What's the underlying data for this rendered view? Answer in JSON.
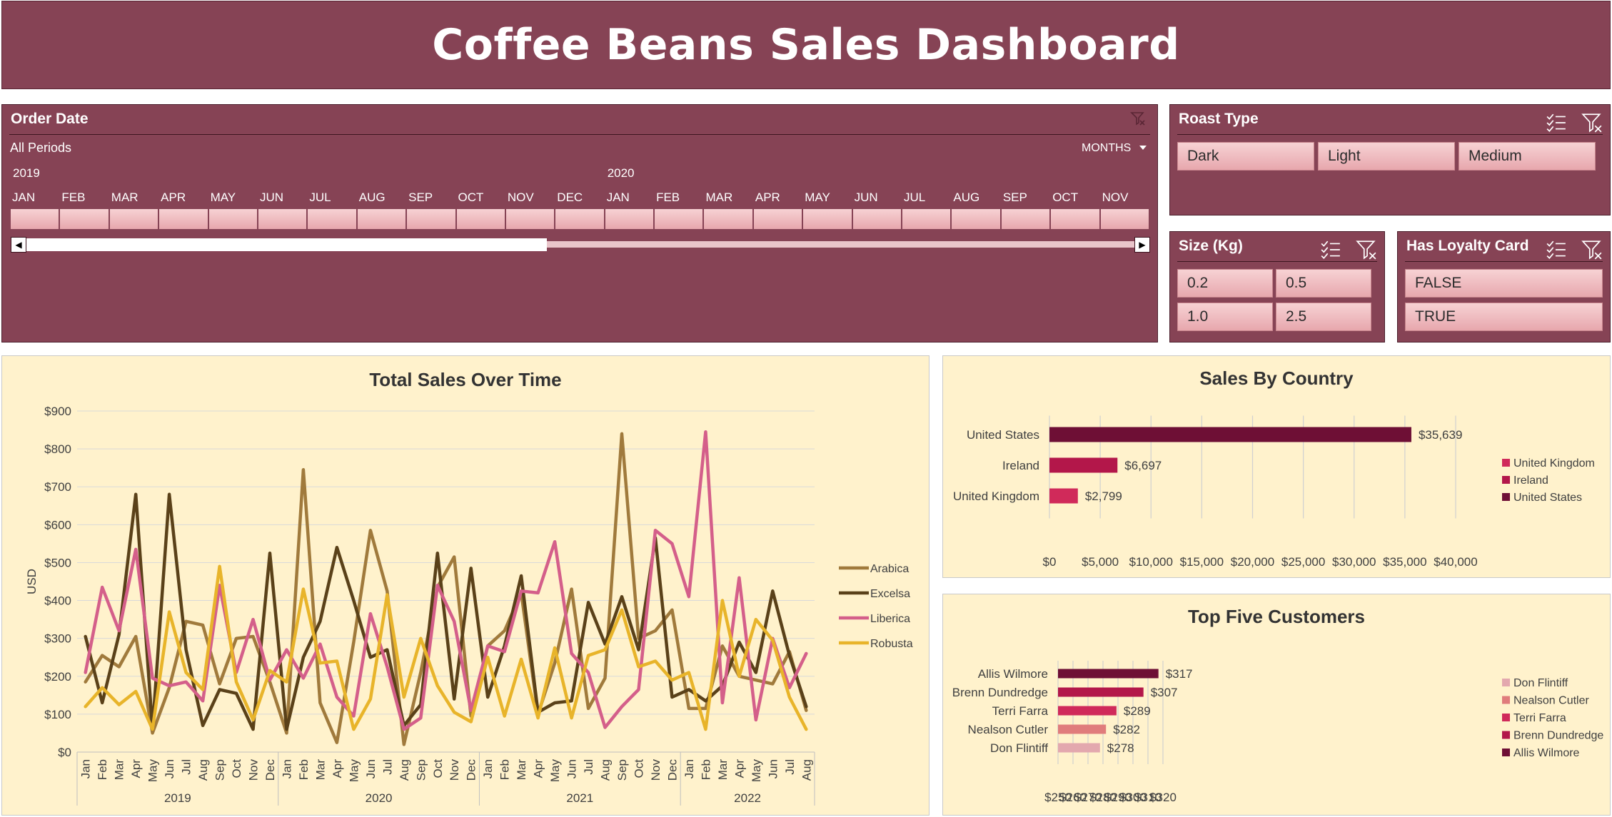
{
  "dashboard": {
    "title": "Coffee Beans Sales Dashboard"
  },
  "colors": {
    "banner": "#864355",
    "slicer_button": "#efbcc0",
    "chart_bg": "#fff2cc",
    "arabica": "#a07a3c",
    "excelsa": "#5a4119",
    "liberica": "#d45f8a",
    "robusta": "#e8b42a",
    "united_states": "#6e0f35",
    "ireland": "#b3174a",
    "united_kingdom": "#d02a5a",
    "allis_wilmore": "#6e0f35",
    "brenn_dundredge": "#b3174a",
    "terri_farra": "#d02a5a",
    "nealson_cutler": "#e07c7c",
    "don_flintiff": "#e3a8ae"
  },
  "timeline": {
    "title": "Order Date",
    "period_label": "All Periods",
    "unit_label": "MONTHS",
    "unit_icon": "dropdown-caret-icon",
    "clear_icon": "clear-filter-icon",
    "years": [
      "2019",
      "2020"
    ],
    "months": [
      "JAN",
      "FEB",
      "MAR",
      "APR",
      "MAY",
      "JUN",
      "JUL",
      "AUG",
      "SEP",
      "OCT",
      "NOV",
      "DEC",
      "JAN",
      "FEB",
      "MAR",
      "APR",
      "MAY",
      "JUN",
      "JUL",
      "AUG",
      "SEP",
      "OCT",
      "NOV"
    ],
    "scroll_position": 0.47
  },
  "roast_type": {
    "title": "Roast Type",
    "items": [
      "Dark",
      "Light",
      "Medium"
    ]
  },
  "size": {
    "title": "Size (Kg)",
    "items": [
      "0.2",
      "0.5",
      "1.0",
      "2.5"
    ]
  },
  "loyalty": {
    "title": "Has Loyalty Card",
    "items": [
      "FALSE",
      "TRUE"
    ]
  },
  "slicer_icons": {
    "multi_select": "multi-select-icon",
    "clear_filter": "clear-filter-icon"
  },
  "chart_data": [
    {
      "type": "line",
      "title": "Total Sales Over Time",
      "ylabel": "USD",
      "xlabel": "",
      "ylim": [
        0,
        900
      ],
      "yticks": [
        "$0",
        "$100",
        "$200",
        "$300",
        "$400",
        "$500",
        "$600",
        "$700",
        "$800",
        "$900"
      ],
      "years": [
        "2019",
        "2020",
        "2021",
        "2022"
      ],
      "x": [
        "Jan",
        "Feb",
        "Mar",
        "Apr",
        "May",
        "Jun",
        "Jul",
        "Aug",
        "Sep",
        "Oct",
        "Nov",
        "Dec",
        "Jan",
        "Feb",
        "Mar",
        "Apr",
        "May",
        "Jun",
        "Jul",
        "Aug",
        "Sep",
        "Oct",
        "Nov",
        "Dec",
        "Jan",
        "Feb",
        "Mar",
        "Apr",
        "May",
        "Jun",
        "Jul",
        "Aug",
        "Sep",
        "Oct",
        "Nov",
        "Dec",
        "Jan",
        "Feb",
        "Mar",
        "Apr",
        "May",
        "Jun",
        "Jul",
        "Aug"
      ],
      "legend_position": "right",
      "grid": true,
      "series": [
        {
          "name": "Arabica",
          "values": [
            185,
            255,
            225,
            305,
            50,
            170,
            345,
            335,
            180,
            300,
            305,
            185,
            50,
            745,
            130,
            25,
            290,
            585,
            425,
            20,
            210,
            435,
            515,
            95,
            280,
            320,
            420,
            100,
            235,
            430,
            115,
            195,
            840,
            300,
            320,
            375,
            115,
            115,
            280,
            200,
            190,
            180,
            265,
            110
          ]
        },
        {
          "name": "Excelsa",
          "values": [
            305,
            130,
            310,
            680,
            60,
            680,
            270,
            70,
            165,
            155,
            60,
            525,
            60,
            250,
            345,
            540,
            400,
            250,
            270,
            70,
            125,
            525,
            140,
            485,
            145,
            280,
            465,
            105,
            130,
            135,
            395,
            285,
            410,
            270,
            565,
            145,
            165,
            135,
            175,
            290,
            210,
            425,
            255,
            120
          ]
        },
        {
          "name": "Liberica",
          "values": [
            210,
            435,
            320,
            535,
            195,
            175,
            185,
            135,
            440,
            210,
            350,
            190,
            270,
            195,
            285,
            145,
            95,
            365,
            225,
            60,
            90,
            440,
            345,
            110,
            280,
            265,
            425,
            420,
            555,
            260,
            210,
            65,
            120,
            165,
            585,
            550,
            410,
            845,
            130,
            460,
            85,
            300,
            170,
            260
          ]
        },
        {
          "name": "Robusta",
          "values": [
            120,
            170,
            125,
            160,
            60,
            370,
            210,
            165,
            490,
            185,
            85,
            215,
            185,
            430,
            235,
            240,
            60,
            140,
            415,
            145,
            300,
            175,
            105,
            80,
            250,
            95,
            245,
            90,
            275,
            90,
            255,
            270,
            375,
            225,
            240,
            190,
            210,
            60,
            400,
            200,
            350,
            295,
            145,
            60
          ]
        }
      ]
    },
    {
      "type": "bar",
      "orientation": "horizontal",
      "title": "Sales By Country",
      "categories": [
        "United States",
        "Ireland",
        "United Kingdom"
      ],
      "values": [
        35639,
        6697,
        2799
      ],
      "data_labels": [
        "$35,639",
        "$6,697",
        "$2,799"
      ],
      "xlim": [
        0,
        40000
      ],
      "xticks": [
        "$0",
        "$5,000",
        "$10,000",
        "$15,000",
        "$20,000",
        "$25,000",
        "$30,000",
        "$35,000",
        "$40,000"
      ],
      "legend": [
        "United Kingdom",
        "Ireland",
        "United States"
      ],
      "legend_position": "right",
      "grid": true
    },
    {
      "type": "bar",
      "orientation": "horizontal",
      "title": "Top Five Customers",
      "categories": [
        "Allis Wilmore",
        "Brenn Dundredge",
        "Terri Farra",
        "Nealson Cutler",
        "Don Flintiff"
      ],
      "values": [
        317,
        307,
        289,
        282,
        278
      ],
      "data_labels": [
        "$317",
        "$307",
        "$289",
        "$282",
        "$278"
      ],
      "xlim": [
        250,
        320
      ],
      "xticks": [
        "$250",
        "$260",
        "$270",
        "$280",
        "$290",
        "$300",
        "$310",
        "$320"
      ],
      "legend": [
        "Don Flintiff",
        "Nealson Cutler",
        "Terri Farra",
        "Brenn Dundredge",
        "Allis Wilmore"
      ],
      "legend_position": "right",
      "grid": true
    }
  ]
}
